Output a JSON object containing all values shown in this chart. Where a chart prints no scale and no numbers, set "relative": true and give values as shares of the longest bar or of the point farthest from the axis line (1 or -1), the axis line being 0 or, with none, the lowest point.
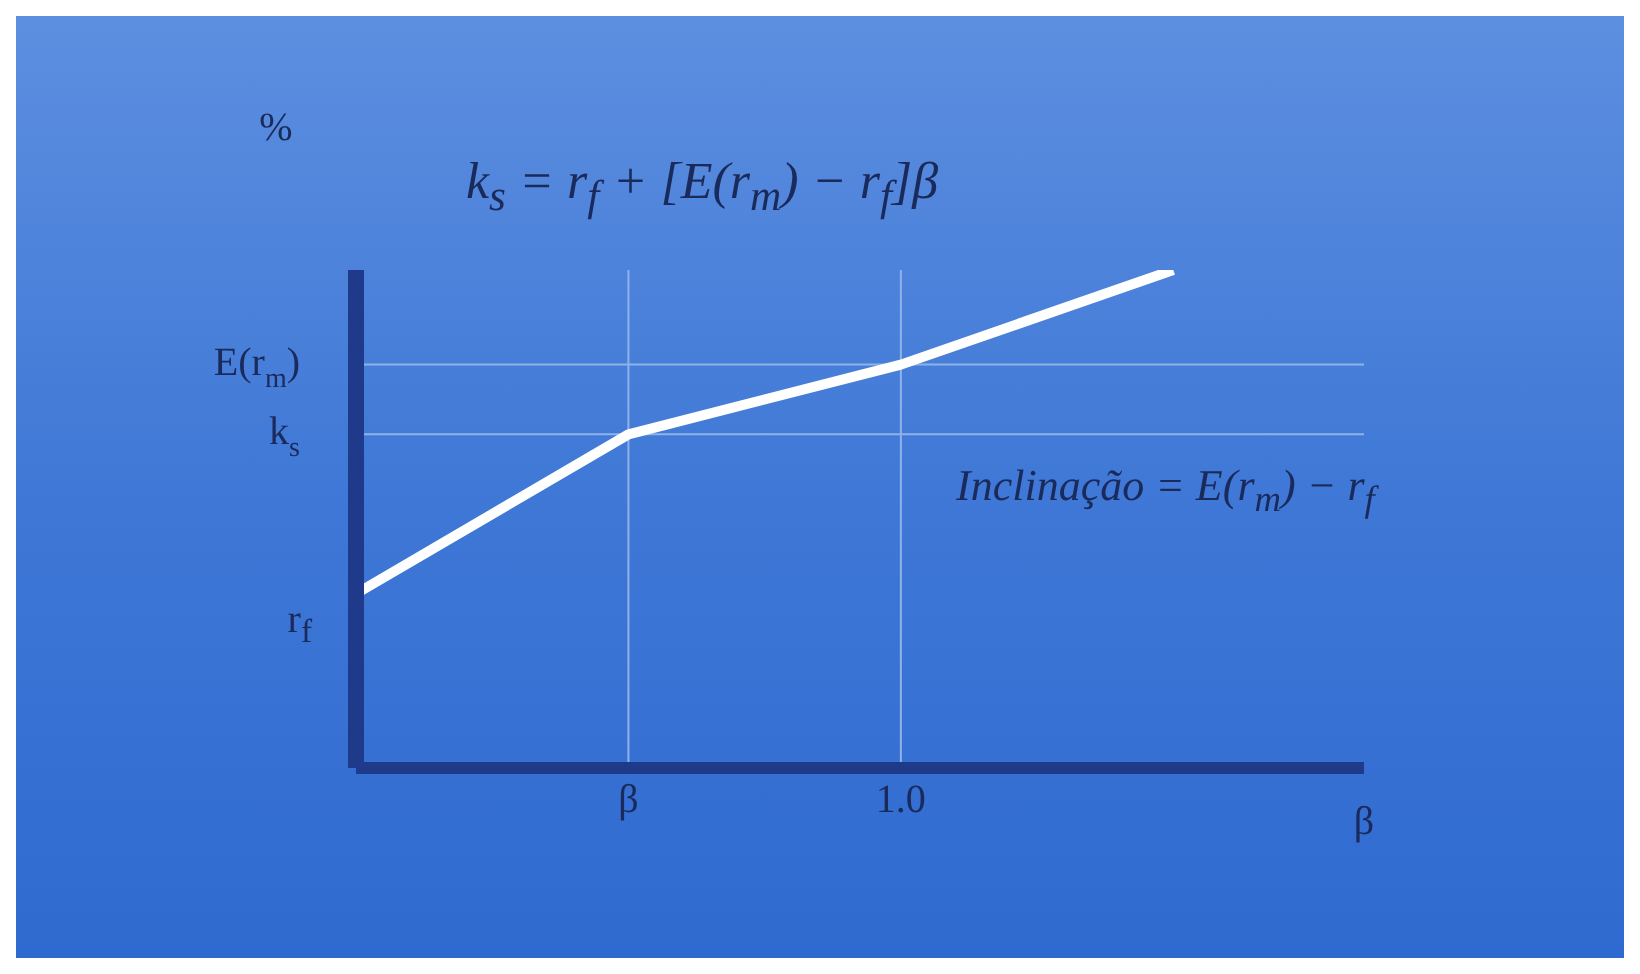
{
  "chart_data": {
    "type": "line",
    "relative": true,
    "title": "k$_{s}$ = r$_{f}$ + [E(r$_{m}$) − r$_{f}$]β",
    "xlabel": "β",
    "ylabel": "%",
    "categories": [
      null,
      "β",
      "1.0",
      null
    ],
    "series": [
      {
        "color": "#ffffff",
        "values": [
          0.35,
          0.67,
          0.81,
          1
        ]
      }
    ],
    "ref_lines": [
      {
        "axis": "y",
        "value": 0.81,
        "label": "E(r$_{m}$)",
        "color": "#8fb3e8"
      },
      {
        "axis": "y",
        "value": 0.67,
        "label": "k$_{s}$",
        "color": "#8fb3e8"
      },
      {
        "axis": "x",
        "value": "β",
        "color": "#8fb3e8"
      },
      {
        "axis": "x",
        "value": "1.0",
        "color": "#8fb3e8"
      }
    ],
    "annotations": [
      "r$_{f}$",
      "Inclinação = E(r$_{m}$) − r$_{f}$"
    ],
    "marker": "none",
    "line_style": "solid"
  }
}
